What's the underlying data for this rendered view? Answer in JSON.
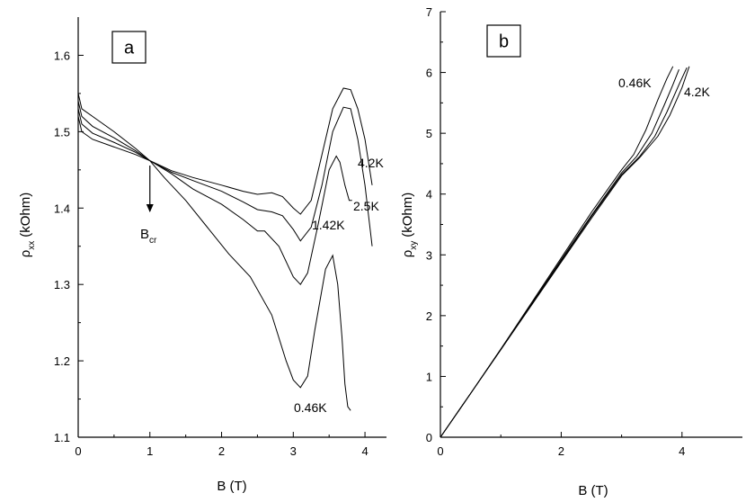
{
  "chart_data": [
    {
      "type": "line",
      "panel_label": "a",
      "xlabel": "B (T)",
      "ylabel_main": "ρ",
      "ylabel_sub": "xx",
      "ylabel_unit": "(kOhm)",
      "xlim": [
        0,
        4.3
      ],
      "ylim": [
        1.1,
        1.65
      ],
      "xticks": [
        0,
        1,
        2,
        3,
        4
      ],
      "xtick_labels": [
        "0",
        "1",
        "2",
        "3",
        "4"
      ],
      "yticks": [
        1.1,
        1.2,
        1.3,
        1.4,
        1.5,
        1.6
      ],
      "ytick_labels": [
        "1.1",
        "1.2",
        "1.3",
        "1.4",
        "1.5",
        "1.6"
      ],
      "grid": false,
      "annotation": {
        "main": "B",
        "sub": "cr",
        "at_x": 1.0
      },
      "series": [
        {
          "name": "4.2K",
          "x": [
            0.0,
            0.05,
            0.2,
            0.5,
            0.8,
            1.0,
            1.3,
            1.6,
            2.0,
            2.3,
            2.5,
            2.7,
            2.85,
            3.0,
            3.1,
            3.25,
            3.4,
            3.55,
            3.7,
            3.8,
            3.9,
            4.0,
            4.1
          ],
          "y": [
            1.55,
            1.53,
            1.52,
            1.5,
            1.478,
            1.462,
            1.449,
            1.44,
            1.43,
            1.422,
            1.418,
            1.42,
            1.415,
            1.4,
            1.392,
            1.41,
            1.47,
            1.53,
            1.557,
            1.555,
            1.53,
            1.49,
            1.43
          ]
        },
        {
          "name": "2.5K",
          "x": [
            0.0,
            0.05,
            0.2,
            0.5,
            0.8,
            1.0,
            1.3,
            1.6,
            2.0,
            2.3,
            2.5,
            2.7,
            2.85,
            3.0,
            3.1,
            3.25,
            3.4,
            3.55,
            3.7,
            3.8,
            3.9,
            4.0,
            4.1
          ],
          "y": [
            1.54,
            1.52,
            1.507,
            1.492,
            1.475,
            1.462,
            1.447,
            1.436,
            1.422,
            1.408,
            1.398,
            1.395,
            1.39,
            1.372,
            1.357,
            1.375,
            1.43,
            1.5,
            1.532,
            1.53,
            1.49,
            1.43,
            1.35
          ]
        },
        {
          "name": "1.42K",
          "x": [
            0.0,
            0.05,
            0.2,
            0.5,
            0.8,
            1.0,
            1.3,
            1.6,
            2.0,
            2.3,
            2.5,
            2.6,
            2.8,
            3.0,
            3.1,
            3.2,
            3.35,
            3.5,
            3.6,
            3.65,
            3.72,
            3.78,
            3.82
          ],
          "y": [
            1.53,
            1.51,
            1.498,
            1.486,
            1.473,
            1.462,
            1.445,
            1.425,
            1.405,
            1.385,
            1.37,
            1.37,
            1.35,
            1.31,
            1.3,
            1.315,
            1.38,
            1.45,
            1.468,
            1.46,
            1.43,
            1.41,
            1.41
          ]
        },
        {
          "name": "0.46K",
          "x": [
            0.0,
            0.05,
            0.2,
            0.5,
            0.8,
            1.0,
            1.2,
            1.5,
            1.8,
            2.1,
            2.4,
            2.7,
            2.9,
            3.0,
            3.1,
            3.2,
            3.3,
            3.45,
            3.55,
            3.62,
            3.68,
            3.72,
            3.76,
            3.8
          ],
          "y": [
            1.52,
            1.5,
            1.49,
            1.48,
            1.47,
            1.462,
            1.44,
            1.41,
            1.375,
            1.34,
            1.31,
            1.26,
            1.2,
            1.175,
            1.165,
            1.18,
            1.24,
            1.32,
            1.338,
            1.3,
            1.23,
            1.17,
            1.14,
            1.135
          ]
        }
      ]
    },
    {
      "type": "line",
      "panel_label": "b",
      "xlabel": "B (T)",
      "ylabel_main": "ρ",
      "ylabel_sub": "xy",
      "ylabel_unit": "(kOhm)",
      "xlim": [
        0,
        5
      ],
      "ylim": [
        0,
        7
      ],
      "xticks": [
        0,
        2,
        4
      ],
      "xtick_labels": [
        "0",
        "2",
        "4"
      ],
      "yticks": [
        0,
        1,
        2,
        3,
        4,
        5,
        6,
        7
      ],
      "ytick_labels": [
        "0",
        "1",
        "2",
        "3",
        "4",
        "5",
        "6",
        "7"
      ],
      "grid": false,
      "series": [
        {
          "name": "0.46K",
          "x": [
            0.0,
            0.5,
            1.0,
            1.5,
            2.0,
            2.5,
            3.0,
            3.2,
            3.4,
            3.6,
            3.75,
            3.85
          ],
          "y": [
            0.0,
            0.72,
            1.45,
            2.2,
            2.95,
            3.7,
            4.4,
            4.65,
            5.05,
            5.55,
            5.9,
            6.1
          ]
        },
        {
          "name": "",
          "x": [
            0.0,
            0.5,
            1.0,
            1.5,
            2.0,
            2.5,
            3.0,
            3.25,
            3.5,
            3.7,
            3.85,
            3.95
          ],
          "y": [
            0.0,
            0.72,
            1.45,
            2.18,
            2.92,
            3.65,
            4.35,
            4.62,
            5.0,
            5.45,
            5.8,
            6.05
          ]
        },
        {
          "name": "",
          "x": [
            0.0,
            0.5,
            1.0,
            1.5,
            2.0,
            2.5,
            3.0,
            3.3,
            3.55,
            3.75,
            3.95,
            4.08
          ],
          "y": [
            0.0,
            0.72,
            1.44,
            2.17,
            2.9,
            3.63,
            4.32,
            4.62,
            4.95,
            5.35,
            5.8,
            6.08
          ]
        },
        {
          "name": "4.2K",
          "x": [
            0.0,
            0.5,
            1.0,
            1.5,
            2.0,
            2.5,
            3.0,
            3.3,
            3.6,
            3.8,
            4.0,
            4.12
          ],
          "y": [
            0.0,
            0.72,
            1.44,
            2.16,
            2.88,
            3.6,
            4.3,
            4.6,
            4.95,
            5.3,
            5.75,
            6.1
          ]
        }
      ]
    }
  ]
}
